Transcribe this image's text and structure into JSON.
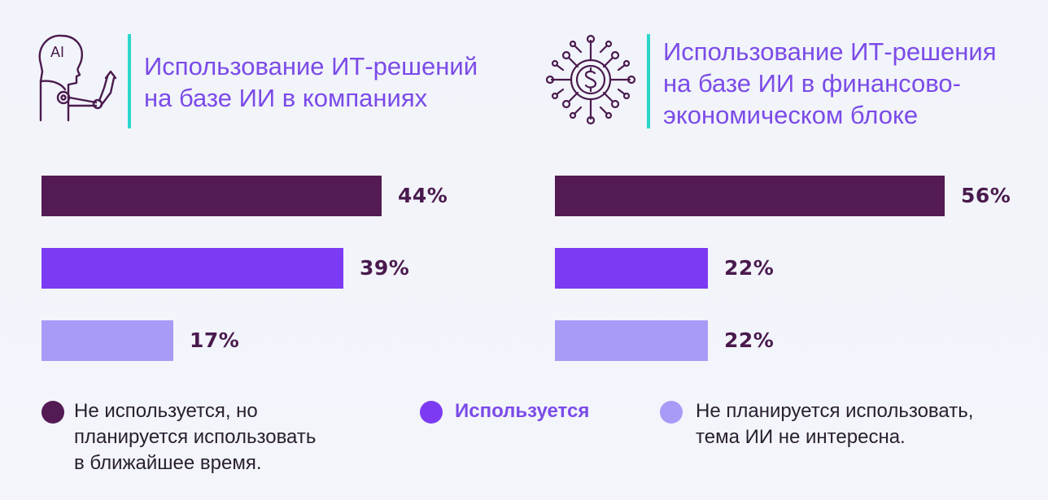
{
  "colors": {
    "not_used_planned": "#531a53",
    "used": "#7c3bf2",
    "not_planned": "#a89bf7",
    "accent_title": "#7b4be8",
    "divider": "#2ad6c9"
  },
  "panels": [
    {
      "icon": "ai-robot-icon",
      "title_lines": [
        "Использование ИТ-решений",
        "на базе ИИ в компаниях"
      ],
      "icon_text": "AI"
    },
    {
      "icon": "dollar-network-icon",
      "title_lines": [
        "Использование ИТ-решения",
        "на базе ИИ в финансово-",
        "экономическом блоке"
      ]
    }
  ],
  "chart_data": [
    {
      "type": "bar",
      "orientation": "horizontal",
      "title": "Использование ИТ-решений на базе ИИ в компаниях",
      "categories": [
        "Не используется, но планируется использовать в ближайшее время",
        "Используется",
        "Не планируется использовать, тема ИИ не интересна."
      ],
      "values": [
        44,
        39,
        17
      ],
      "labels": [
        "44%",
        "39%",
        "17%"
      ],
      "unit": "%"
    },
    {
      "type": "bar",
      "orientation": "horizontal",
      "title": "Использование ИТ-решения на базе ИИ в финансово-экономическом блоке",
      "categories": [
        "Не используется, но планируется использовать в ближайшее время",
        "Используется",
        "Не планируется использовать, тема ИИ не интересна."
      ],
      "values": [
        56,
        22,
        22
      ],
      "labels": [
        "56%",
        "22%",
        "22%"
      ],
      "unit": "%"
    }
  ],
  "legend": [
    {
      "lines": [
        "Не используется, но",
        "планируется использовать",
        "в ближайшее время."
      ],
      "color": "#531a53",
      "bold": false
    },
    {
      "lines": [
        "Используется"
      ],
      "color": "#7c3bf2",
      "bold": true
    },
    {
      "lines": [
        "Не планируется использовать,",
        "тема ИИ не интересна."
      ],
      "color": "#a89bf7",
      "bold": false
    }
  ]
}
